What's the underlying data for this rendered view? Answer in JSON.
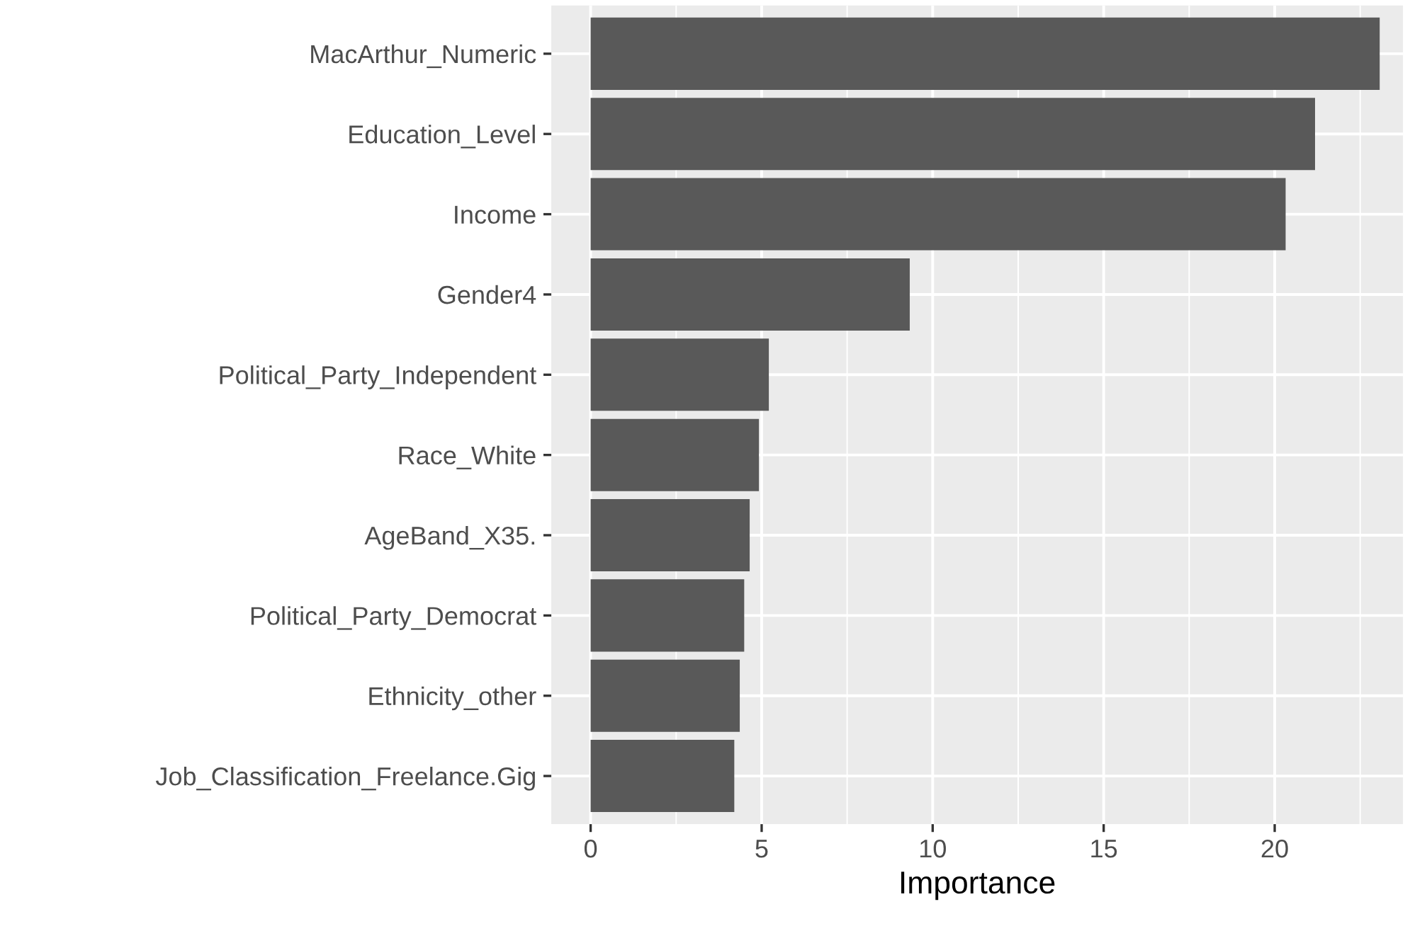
{
  "chart_data": {
    "type": "bar",
    "orientation": "horizontal",
    "xlabel": "Importance",
    "categories": [
      "MacArthur_Numeric",
      "Education_Level",
      "Income",
      "Gender4",
      "Political_Party_Independent",
      "Race_White",
      "AgeBand_X35.",
      "Political_Party_Democrat",
      "Ethnicity_other",
      "Job_Classification_Freelance.Gig"
    ],
    "values": [
      23.07,
      21.18,
      20.32,
      9.33,
      5.21,
      4.92,
      4.65,
      4.49,
      4.36,
      4.2
    ],
    "color": "#595959",
    "xlim": [
      -1.15,
      23.75
    ],
    "xticks": [
      0,
      5,
      10,
      15,
      20
    ],
    "grid": true
  }
}
